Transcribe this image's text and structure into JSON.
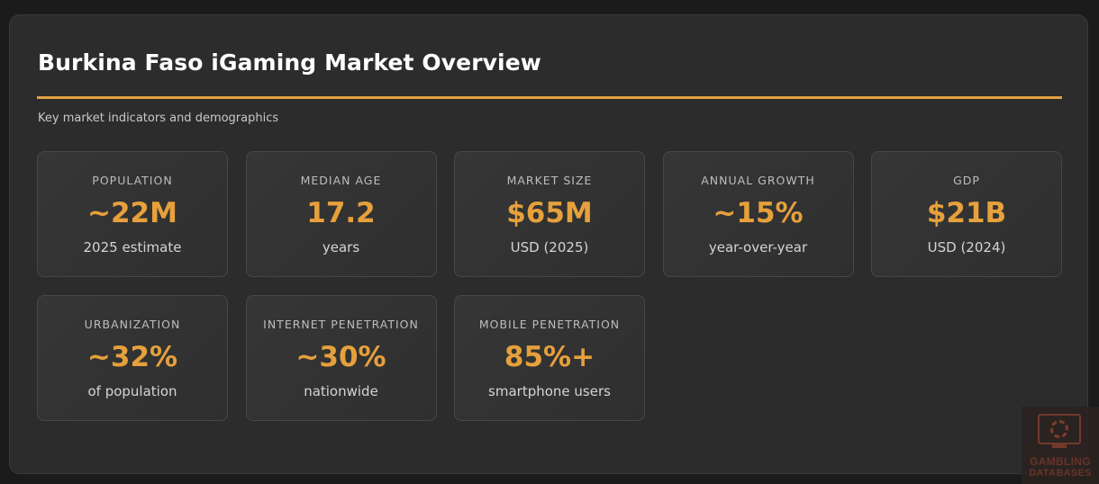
{
  "header": {
    "title": "Burkina Faso iGaming Market Overview",
    "subtitle": "Key market indicators and demographics"
  },
  "colors": {
    "accent": "#e6a03c",
    "background": "#2c2c2c",
    "card": "#333333"
  },
  "stats": [
    {
      "label": "POPULATION",
      "value": "~22M",
      "note": "2025 estimate"
    },
    {
      "label": "MEDIAN AGE",
      "value": "17.2",
      "note": "years"
    },
    {
      "label": "MARKET SIZE",
      "value": "$65M",
      "note": "USD (2025)"
    },
    {
      "label": "ANNUAL GROWTH",
      "value": "~15%",
      "note": "year-over-year"
    },
    {
      "label": "GDP",
      "value": "$21B",
      "note": "USD (2024)"
    },
    {
      "label": "URBANIZATION",
      "value": "~32%",
      "note": "of population"
    },
    {
      "label": "INTERNET PENETRATION",
      "value": "~30%",
      "note": "nationwide"
    },
    {
      "label": "MOBILE PENETRATION",
      "value": "85%+",
      "note": "smartphone users"
    }
  ],
  "watermark": {
    "line1": "GAMBLING",
    "line2": "DATABASES",
    "icon": "monitor-poker-chip-icon"
  }
}
